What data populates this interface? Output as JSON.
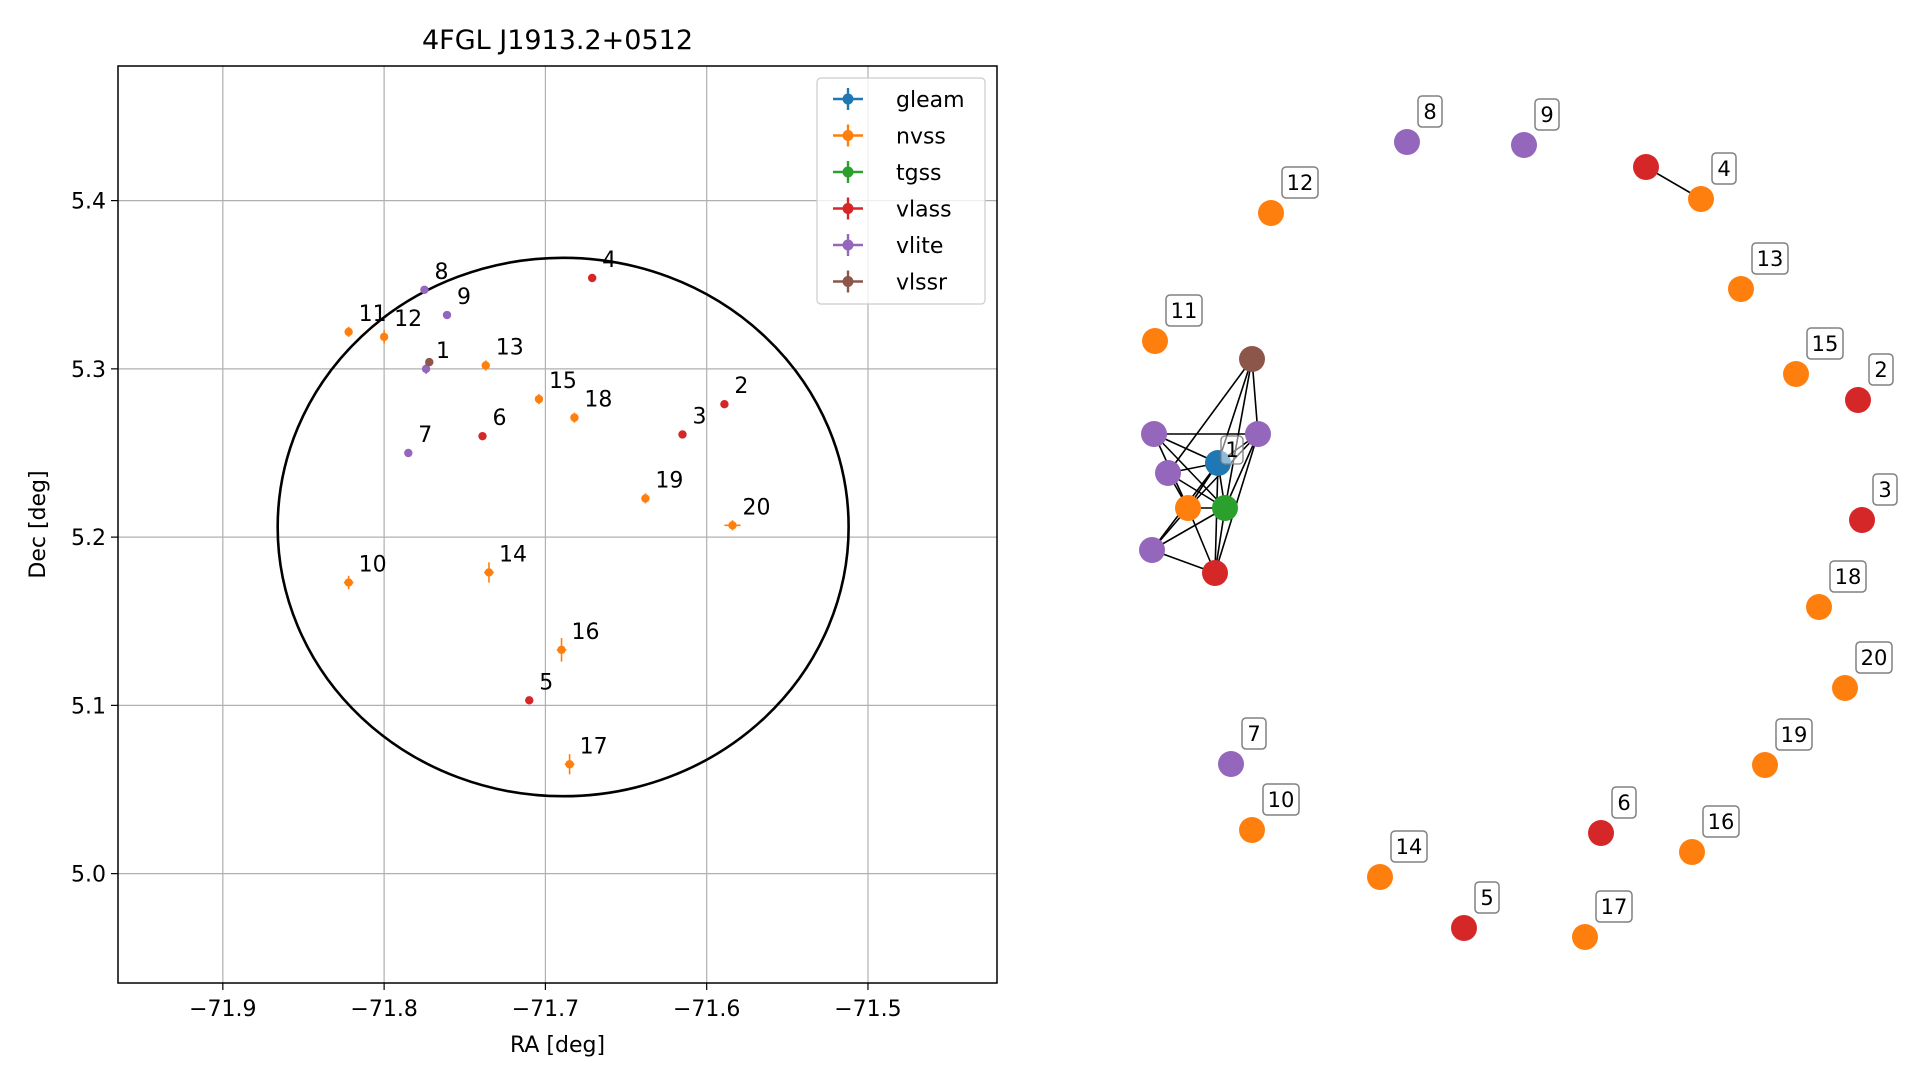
{
  "chart_data": [
    {
      "type": "scatter",
      "title": "4FGL J1913.2+0512",
      "xlabel": "RA [deg]",
      "ylabel": "Dec [deg]",
      "xlim": [
        -71.965,
        -71.42
      ],
      "ylim": [
        4.935,
        5.48
      ],
      "xticks": [
        -71.9,
        -71.8,
        -71.7,
        -71.6,
        -71.5
      ],
      "xtick_labels": [
        "−71.9",
        "−71.8",
        "−71.7",
        "−71.6",
        "−71.5"
      ],
      "yticks": [
        5.0,
        5.1,
        5.2,
        5.3,
        5.4
      ],
      "ytick_labels": [
        "5.0",
        "5.1",
        "5.2",
        "5.3",
        "5.4"
      ],
      "grid": true,
      "legend_position": "top-right",
      "ellipse": {
        "center": [
          -71.689,
          5.206
        ],
        "ra_radius": 0.177,
        "dec_radius": 0.16
      },
      "series": [
        {
          "name": "gleam",
          "color": "#1f77b4",
          "points": []
        },
        {
          "name": "nvss",
          "color": "#ff7f0e",
          "points": [
            {
              "id": "10",
              "x": -71.822,
              "y": 5.173,
              "xerr": 0.003,
              "yerr": 0.004
            },
            {
              "id": "11",
              "x": -71.822,
              "y": 5.322,
              "xerr": 0.002,
              "yerr": 0.003
            },
            {
              "id": "12",
              "x": -71.8,
              "y": 5.319,
              "xerr": 0.002,
              "yerr": 0.004
            },
            {
              "id": "13",
              "x": -71.737,
              "y": 5.302,
              "xerr": 0.002,
              "yerr": 0.003
            },
            {
              "id": "14",
              "x": -71.735,
              "y": 5.179,
              "xerr": 0.003,
              "yerr": 0.006
            },
            {
              "id": "15",
              "x": -71.704,
              "y": 5.282,
              "xerr": 0.002,
              "yerr": 0.003
            },
            {
              "id": "16",
              "x": -71.69,
              "y": 5.133,
              "xerr": 0.003,
              "yerr": 0.007
            },
            {
              "id": "17",
              "x": -71.685,
              "y": 5.065,
              "xerr": 0.003,
              "yerr": 0.006
            },
            {
              "id": "18",
              "x": -71.682,
              "y": 5.271,
              "xerr": 0.002,
              "yerr": 0.003
            },
            {
              "id": "19",
              "x": -71.638,
              "y": 5.223,
              "xerr": 0.002,
              "yerr": 0.003
            },
            {
              "id": "20",
              "x": -71.584,
              "y": 5.207,
              "xerr": 0.005,
              "yerr": 0.003
            }
          ]
        },
        {
          "name": "tgss",
          "color": "#2ca02c",
          "points": []
        },
        {
          "name": "vlass",
          "color": "#d62728",
          "points": [
            {
              "id": "2",
              "x": -71.589,
              "y": 5.279,
              "xerr": 0,
              "yerr": 0
            },
            {
              "id": "3",
              "x": -71.615,
              "y": 5.261,
              "xerr": 0,
              "yerr": 0
            },
            {
              "id": "4",
              "x": -71.671,
              "y": 5.354,
              "xerr": 0,
              "yerr": 0
            },
            {
              "id": "5",
              "x": -71.71,
              "y": 5.103,
              "xerr": 0,
              "yerr": 0
            },
            {
              "id": "6",
              "x": -71.739,
              "y": 5.26,
              "xerr": 0,
              "yerr": 0
            }
          ]
        },
        {
          "name": "vlite",
          "color": "#9467bd",
          "points": [
            {
              "id": "1",
              "x": -71.774,
              "y": 5.3,
              "xerr": 0.002,
              "yerr": 0.003
            },
            {
              "id": "7",
              "x": -71.785,
              "y": 5.25,
              "xerr": 0,
              "yerr": 0
            },
            {
              "id": "8",
              "x": -71.775,
              "y": 5.347,
              "xerr": 0,
              "yerr": 0
            },
            {
              "id": "9",
              "x": -71.761,
              "y": 5.332,
              "xerr": 0,
              "yerr": 0
            }
          ]
        },
        {
          "name": "vlssr",
          "color": "#8c564b",
          "points": [
            {
              "x": -71.772,
              "y": 5.304,
              "xerr": 0.002,
              "yerr": 0.002
            }
          ]
        }
      ]
    },
    {
      "type": "network",
      "cluster_label": "1",
      "colors": {
        "nvss": "#ff7f0e",
        "vlass": "#d62728",
        "vlite": "#9467bd",
        "vlssr": "#8c564b",
        "gleam": "#1f77b4",
        "tgss": "#2ca02c"
      },
      "nodes": [
        {
          "id": "c-gleam",
          "survey": "gleam"
        },
        {
          "id": "c-tgss",
          "survey": "tgss"
        },
        {
          "id": "c-nvss",
          "survey": "nvss"
        },
        {
          "id": "c-vlass",
          "survey": "vlass"
        },
        {
          "id": "c-vlssr",
          "survey": "vlssr"
        },
        {
          "id": "c-vlite-a",
          "survey": "vlite"
        },
        {
          "id": "c-vlite-b",
          "survey": "vlite"
        },
        {
          "id": "c-vlite-c",
          "survey": "vlite"
        },
        {
          "id": "c-vlite-d",
          "survey": "vlite"
        },
        {
          "id": "2",
          "survey": "vlass",
          "label": "2"
        },
        {
          "id": "3",
          "survey": "vlass",
          "label": "3"
        },
        {
          "id": "4",
          "survey": "nvss",
          "label": "4"
        },
        {
          "id": "4b",
          "survey": "vlass"
        },
        {
          "id": "5",
          "survey": "vlass",
          "label": "5"
        },
        {
          "id": "6",
          "survey": "vlass",
          "label": "6"
        },
        {
          "id": "7",
          "survey": "vlite",
          "label": "7"
        },
        {
          "id": "8",
          "survey": "vlite",
          "label": "8"
        },
        {
          "id": "9",
          "survey": "vlite",
          "label": "9"
        },
        {
          "id": "10",
          "survey": "nvss",
          "label": "10"
        },
        {
          "id": "11",
          "survey": "nvss",
          "label": "11"
        },
        {
          "id": "12",
          "survey": "nvss",
          "label": "12"
        },
        {
          "id": "13",
          "survey": "nvss",
          "label": "13"
        },
        {
          "id": "14",
          "survey": "nvss",
          "label": "14"
        },
        {
          "id": "15",
          "survey": "nvss",
          "label": "15"
        },
        {
          "id": "16",
          "survey": "nvss",
          "label": "16"
        },
        {
          "id": "17",
          "survey": "nvss",
          "label": "17"
        },
        {
          "id": "18",
          "survey": "nvss",
          "label": "18"
        },
        {
          "id": "19",
          "survey": "nvss",
          "label": "19"
        },
        {
          "id": "20",
          "survey": "nvss",
          "label": "20"
        }
      ],
      "edges": [
        [
          "c-vlssr",
          "c-vlite-b"
        ],
        [
          "c-vlssr",
          "c-gleam"
        ],
        [
          "c-vlssr",
          "c-tgss"
        ],
        [
          "c-vlssr",
          "c-vlite-c"
        ],
        [
          "c-vlite-a",
          "c-gleam"
        ],
        [
          "c-vlite-a",
          "c-tgss"
        ],
        [
          "c-vlite-a",
          "c-nvss"
        ],
        [
          "c-vlite-a",
          "c-vlite-c"
        ],
        [
          "c-vlite-b",
          "c-gleam"
        ],
        [
          "c-vlite-b",
          "c-tgss"
        ],
        [
          "c-vlite-b",
          "c-nvss"
        ],
        [
          "c-vlite-c",
          "c-gleam"
        ],
        [
          "c-vlite-c",
          "c-tgss"
        ],
        [
          "c-vlite-c",
          "c-nvss"
        ],
        [
          "c-vlite-c",
          "c-vlass"
        ],
        [
          "c-vlite-d",
          "c-gleam"
        ],
        [
          "c-vlite-d",
          "c-tgss"
        ],
        [
          "c-vlite-d",
          "c-nvss"
        ],
        [
          "c-vlite-d",
          "c-vlass"
        ],
        [
          "c-gleam",
          "c-tgss"
        ],
        [
          "c-gleam",
          "c-nvss"
        ],
        [
          "c-gleam",
          "c-vlass"
        ],
        [
          "c-tgss",
          "c-nvss"
        ],
        [
          "c-tgss",
          "c-vlass"
        ],
        [
          "c-nvss",
          "c-vlass"
        ],
        [
          "4b",
          "4"
        ]
      ]
    }
  ]
}
